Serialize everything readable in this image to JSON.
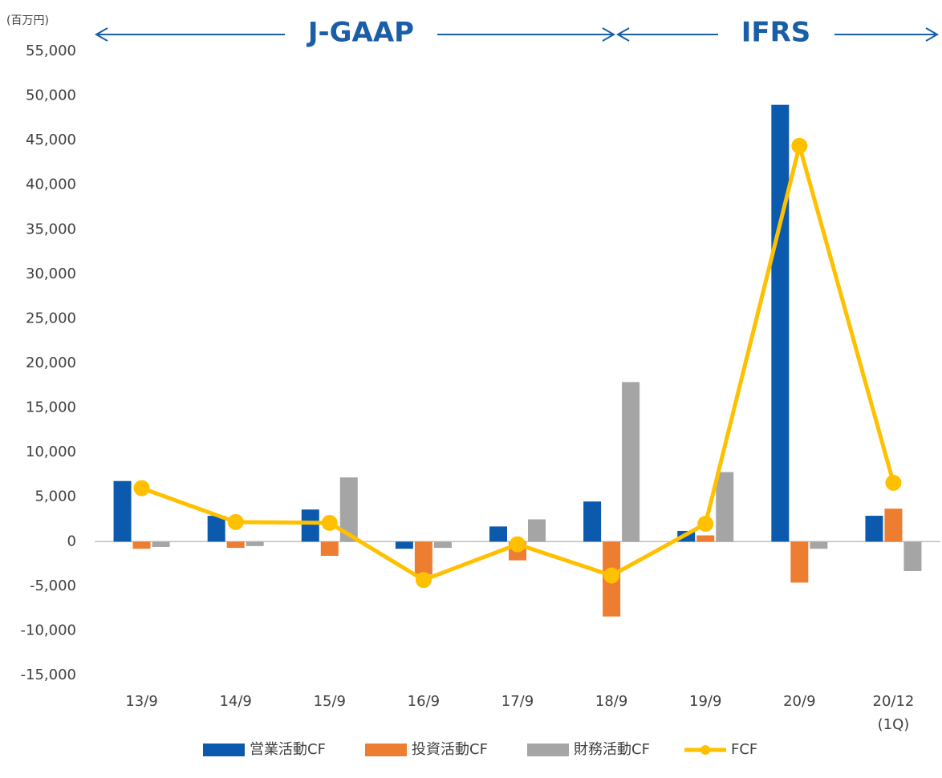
{
  "chart_data": {
    "type": "bar",
    "unit_label": "(百万円)",
    "period_labels": [
      "J-GAAP",
      "IFRS"
    ],
    "categories": [
      "13/9",
      "14/9",
      "15/9",
      "16/9",
      "17/9",
      "18/9",
      "19/9",
      "20/9",
      "20/12\n(1Q)"
    ],
    "series": [
      {
        "name": "営業活動CF",
        "color": "#0b5aad",
        "type": "bar",
        "values": [
          6800,
          2900,
          3600,
          -800,
          1700,
          4500,
          1200,
          49000,
          2900
        ]
      },
      {
        "name": "投資活動CF",
        "color": "#ed7d31",
        "type": "bar",
        "values": [
          -800,
          -700,
          -1600,
          -3700,
          -2100,
          -8400,
          700,
          -4600,
          3700
        ]
      },
      {
        "name": "財務活動CF",
        "color": "#a5a5a5",
        "type": "bar",
        "values": [
          -600,
          -500,
          7200,
          -700,
          2500,
          17900,
          7800,
          -800,
          -3300
        ]
      },
      {
        "name": "FCF",
        "color": "#ffc000",
        "type": "line",
        "values": [
          6000,
          2200,
          2100,
          -4300,
          -300,
          -3800,
          2000,
          44400,
          6600
        ]
      }
    ],
    "ylim": [
      -15000,
      55000
    ],
    "yticks": [
      {
        "value": -15000,
        "label": "-15,000"
      },
      {
        "value": -10000,
        "label": "-10,000"
      },
      {
        "value": -5000,
        "label": "-5,000"
      },
      0,
      {
        "value": 5000,
        "label": "5,000"
      },
      {
        "value": 10000,
        "label": "10,000"
      },
      {
        "value": 15000,
        "label": "15,000"
      },
      {
        "value": 20000,
        "label": "20,000"
      },
      {
        "value": 25000,
        "label": "25,000"
      },
      {
        "value": 30000,
        "label": "30,000"
      },
      {
        "value": 35000,
        "label": "35,000"
      },
      {
        "value": 40000,
        "label": "40,000"
      },
      {
        "value": 45000,
        "label": "45,000"
      },
      {
        "value": 50000,
        "label": "50,000"
      },
      {
        "value": 55000,
        "label": "55,000"
      }
    ],
    "grid": false,
    "legend": "bottom"
  }
}
